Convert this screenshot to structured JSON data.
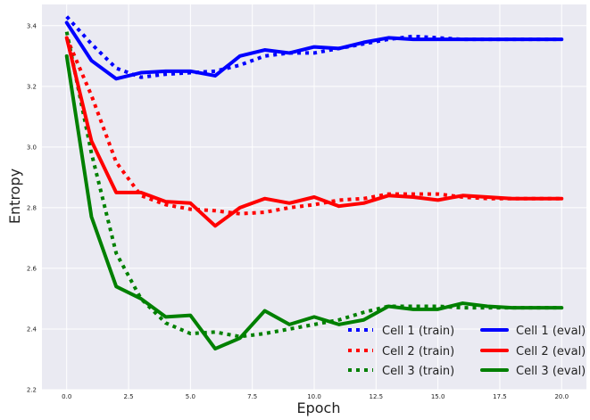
{
  "chart_data": {
    "type": "line",
    "title": "",
    "xlabel": "Epoch",
    "ylabel": "Entropy",
    "xlim": [
      -1,
      21
    ],
    "ylim": [
      2.2,
      3.47
    ],
    "x_ticks": [
      0.0,
      2.5,
      5.0,
      7.5,
      10.0,
      12.5,
      15.0,
      17.5,
      20.0
    ],
    "x_tick_labels": [
      "0.0",
      "2.5",
      "5.0",
      "7.5",
      "10.0",
      "12.5",
      "15.0",
      "17.5",
      "20.0"
    ],
    "y_ticks": [
      2.2,
      2.4,
      2.6,
      2.8,
      3.0,
      3.2,
      3.4
    ],
    "y_tick_labels": [
      "2.2",
      "2.4",
      "2.6",
      "2.8",
      "3.0",
      "3.2",
      "3.4"
    ],
    "grid": true,
    "background": "#EAEAF2",
    "legend_position": "lower-right",
    "x": [
      0,
      1,
      2,
      3,
      4,
      5,
      6,
      7,
      8,
      9,
      10,
      11,
      12,
      13,
      14,
      15,
      16,
      17,
      18,
      19,
      20
    ],
    "series": [
      {
        "name": "Cell 1 (train)",
        "style": "dotted",
        "color": "#0000FF",
        "values": [
          3.43,
          3.34,
          3.26,
          3.23,
          3.24,
          3.245,
          3.25,
          3.27,
          3.3,
          3.31,
          3.31,
          3.325,
          3.34,
          3.355,
          3.365,
          3.36,
          3.355,
          3.355,
          3.355,
          3.355,
          3.355
        ]
      },
      {
        "name": "Cell 2 (train)",
        "style": "dotted",
        "color": "#FF0000",
        "values": [
          3.36,
          3.17,
          2.95,
          2.84,
          2.81,
          2.795,
          2.79,
          2.78,
          2.785,
          2.8,
          2.81,
          2.825,
          2.83,
          2.845,
          2.845,
          2.845,
          2.835,
          2.83,
          2.83,
          2.83,
          2.83
        ]
      },
      {
        "name": "Cell 3 (train)",
        "style": "dotted",
        "color": "#008000",
        "values": [
          3.38,
          2.98,
          2.65,
          2.5,
          2.42,
          2.385,
          2.39,
          2.375,
          2.385,
          2.4,
          2.415,
          2.43,
          2.455,
          2.475,
          2.475,
          2.475,
          2.47,
          2.47,
          2.47,
          2.47,
          2.47
        ]
      },
      {
        "name": "Cell 1 (eval)",
        "style": "solid",
        "color": "#0000FF",
        "values": [
          3.41,
          3.285,
          3.225,
          3.245,
          3.25,
          3.25,
          3.235,
          3.3,
          3.32,
          3.31,
          3.33,
          3.325,
          3.345,
          3.36,
          3.355,
          3.355,
          3.355,
          3.355,
          3.355,
          3.355,
          3.355
        ]
      },
      {
        "name": "Cell 2 (eval)",
        "style": "solid",
        "color": "#FF0000",
        "values": [
          3.36,
          3.02,
          2.85,
          2.85,
          2.82,
          2.815,
          2.74,
          2.8,
          2.83,
          2.815,
          2.835,
          2.805,
          2.815,
          2.84,
          2.835,
          2.825,
          2.84,
          2.835,
          2.83,
          2.83,
          2.83
        ]
      },
      {
        "name": "Cell 3 (eval)",
        "style": "solid",
        "color": "#008000",
        "values": [
          3.3,
          2.77,
          2.54,
          2.5,
          2.44,
          2.445,
          2.335,
          2.37,
          2.46,
          2.415,
          2.44,
          2.415,
          2.43,
          2.475,
          2.465,
          2.465,
          2.485,
          2.475,
          2.47,
          2.47,
          2.47
        ]
      }
    ],
    "legend": {
      "columns": [
        [
          "Cell 1 (train)",
          "Cell 2 (train)",
          "Cell 3 (train)"
        ],
        [
          "Cell 1 (eval)",
          "Cell 2 (eval)",
          "Cell 3 (eval)"
        ]
      ]
    }
  }
}
